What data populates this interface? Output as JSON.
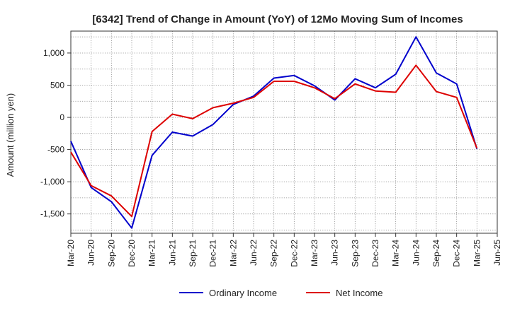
{
  "chart_data": {
    "type": "line",
    "title": "[6342]  Trend of Change in Amount (YoY) of 12Mo Moving Sum of Incomes",
    "xlabel": "",
    "ylabel": "Amount (million yen)",
    "categories": [
      "Mar-20",
      "Jun-20",
      "Sep-20",
      "Dec-20",
      "Mar-21",
      "Jun-21",
      "Sep-21",
      "Dec-21",
      "Mar-22",
      "Jun-22",
      "Sep-22",
      "Dec-22",
      "Mar-23",
      "Jun-23",
      "Sep-23",
      "Dec-23",
      "Mar-24",
      "Jun-24",
      "Sep-24",
      "Dec-24",
      "Mar-25",
      "Jun-25"
    ],
    "yticks": [
      -1500,
      -1000,
      -500,
      0,
      500,
      1000
    ],
    "ytick_labels": [
      "-1,500",
      "-1,000",
      "-500",
      "0",
      "500",
      "1,000"
    ],
    "ylim": [
      -1800,
      1340
    ],
    "grid": true,
    "legend_position": "bottom-center",
    "series": [
      {
        "name": "Ordinary Income",
        "color": "#0000cc",
        "values": [
          -370,
          -1090,
          -1310,
          -1720,
          -590,
          -230,
          -290,
          -110,
          200,
          330,
          610,
          650,
          490,
          270,
          600,
          460,
          670,
          1250,
          690,
          520,
          -490,
          null
        ]
      },
      {
        "name": "Net Income",
        "color": "#dd0000",
        "values": [
          -540,
          -1060,
          -1220,
          -1540,
          -220,
          50,
          -20,
          150,
          220,
          310,
          560,
          560,
          460,
          290,
          520,
          410,
          390,
          810,
          400,
          310,
          -480,
          null
        ]
      }
    ]
  }
}
